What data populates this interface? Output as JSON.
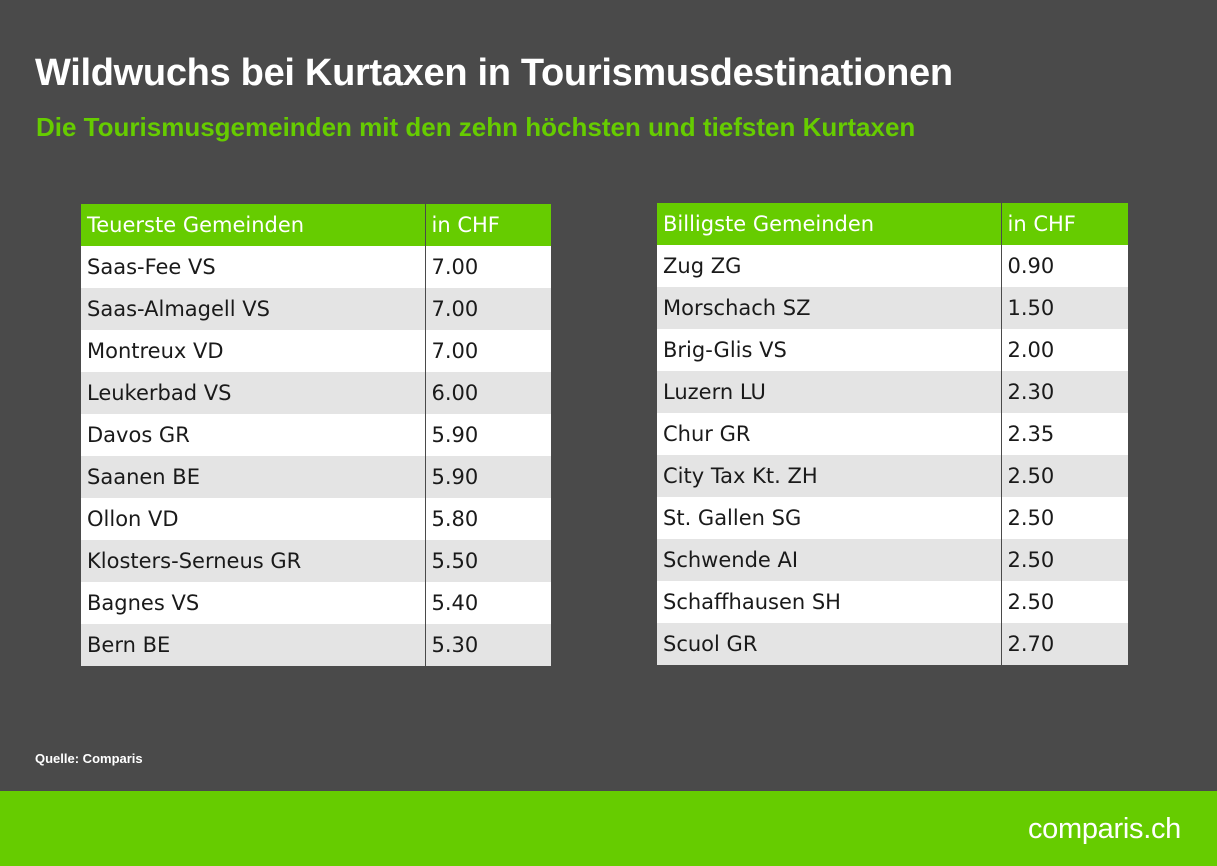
{
  "title": "Wildwuchs bei Kurtaxen in Tourismusdestinationen",
  "subtitle": "Die Tourismusgemeinden mit den zehn höchsten und tiefsten Kurtaxen",
  "source": "Quelle: Comparis",
  "logo": "comparis.ch",
  "colors": {
    "accent": "#66cc00",
    "background": "#4a4a4a",
    "row_alt": "#e4e4e4"
  },
  "chart_data": [
    {
      "type": "table",
      "columns": [
        "Teuerste Gemeinden",
        "in CHF"
      ],
      "rows": [
        [
          "Saas-Fee VS",
          "7.00"
        ],
        [
          "Saas-Almagell VS",
          "7.00"
        ],
        [
          "Montreux VD",
          "7.00"
        ],
        [
          "Leukerbad VS",
          "6.00"
        ],
        [
          "Davos GR",
          "5.90"
        ],
        [
          "Saanen BE",
          "5.90"
        ],
        [
          "Ollon VD",
          "5.80"
        ],
        [
          "Klosters-Serneus GR",
          "5.50"
        ],
        [
          "Bagnes VS",
          "5.40"
        ],
        [
          "Bern BE",
          "5.30"
        ]
      ]
    },
    {
      "type": "table",
      "columns": [
        "Billigste Gemeinden",
        "in CHF"
      ],
      "rows": [
        [
          "Zug ZG",
          "0.90"
        ],
        [
          "Morschach SZ",
          "1.50"
        ],
        [
          "Brig-Glis VS",
          "2.00"
        ],
        [
          "Luzern LU",
          "2.30"
        ],
        [
          "Chur GR",
          "2.35"
        ],
        [
          "City Tax Kt. ZH",
          "2.50"
        ],
        [
          "St. Gallen SG",
          "2.50"
        ],
        [
          "Schwende AI",
          "2.50"
        ],
        [
          "Schaffhausen SH",
          "2.50"
        ],
        [
          "Scuol GR",
          "2.70"
        ]
      ]
    }
  ]
}
